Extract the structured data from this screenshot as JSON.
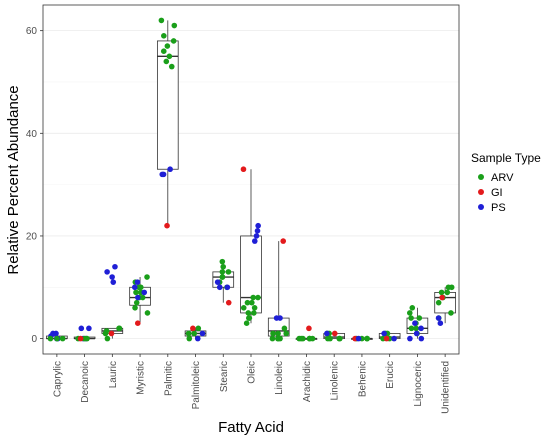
{
  "chart_data": {
    "type": "box",
    "xlabel": "Fatty Acid",
    "ylabel": "Relative Percent Abundance",
    "ylim": [
      -3,
      65
    ],
    "yticks": [
      0,
      20,
      40,
      60
    ],
    "grid": true,
    "legend_position": "right",
    "categories": [
      "Caprylic",
      "Decanoic",
      "Lauric",
      "Myristic",
      "Palmitic",
      "Palmitoleic",
      "Stearic",
      "Oleic",
      "Linoleic",
      "Arachidic",
      "Linolenic",
      "Behenic",
      "Erucic",
      "Lignoceric",
      "Unidentified"
    ],
    "legend": {
      "title": "Sample Type",
      "entries": [
        {
          "name": "ARV",
          "color": "#1a9f1a"
        },
        {
          "name": "GI",
          "color": "#e31a1c"
        },
        {
          "name": "PS",
          "color": "#1f1fd6"
        }
      ]
    },
    "boxes": [
      {
        "category": "Caprylic",
        "q1": 0,
        "median": 0,
        "q3": 0.5,
        "whisker_low": 0,
        "whisker_high": 1
      },
      {
        "category": "Decanoic",
        "q1": 0,
        "median": 0,
        "q3": 0.3,
        "whisker_low": 0,
        "whisker_high": 0.5
      },
      {
        "category": "Lauric",
        "q1": 1,
        "median": 1.5,
        "q3": 2,
        "whisker_low": 0,
        "whisker_high": 2
      },
      {
        "category": "Myristic",
        "q1": 6.5,
        "median": 8,
        "q3": 10,
        "whisker_low": 3,
        "whisker_high": 12
      },
      {
        "category": "Palmitic",
        "q1": 33,
        "median": 55,
        "q3": 58,
        "whisker_low": 22,
        "whisker_high": 62
      },
      {
        "category": "Palmitoleic",
        "q1": 0.5,
        "median": 1,
        "q3": 1.5,
        "whisker_low": 0,
        "whisker_high": 2
      },
      {
        "category": "Stearic",
        "q1": 10,
        "median": 12,
        "q3": 13,
        "whisker_low": 7,
        "whisker_high": 15
      },
      {
        "category": "Oleic",
        "q1": 5,
        "median": 8,
        "q3": 20,
        "whisker_low": 3,
        "whisker_high": 33
      },
      {
        "category": "Linoleic",
        "q1": 0.5,
        "median": 1.5,
        "q3": 4,
        "whisker_low": 0,
        "whisker_high": 19
      },
      {
        "category": "Arachidic",
        "q1": 0,
        "median": 0,
        "q3": 0,
        "whisker_low": 0,
        "whisker_high": 0
      },
      {
        "category": "Linolenic",
        "q1": 0,
        "median": 0.3,
        "q3": 1,
        "whisker_low": 0,
        "whisker_high": 1
      },
      {
        "category": "Behenic",
        "q1": 0,
        "median": 0,
        "q3": 0,
        "whisker_low": 0,
        "whisker_high": 0
      },
      {
        "category": "Erucic",
        "q1": 0,
        "median": 0.3,
        "q3": 1,
        "whisker_low": 0,
        "whisker_high": 1
      },
      {
        "category": "Lignoceric",
        "q1": 1,
        "median": 2,
        "q3": 4,
        "whisker_low": 0,
        "whisker_high": 6
      },
      {
        "category": "Unidentified",
        "q1": 5,
        "median": 8,
        "q3": 9,
        "whisker_low": 3,
        "whisker_high": 10
      }
    ],
    "points": [
      {
        "category": "Caprylic",
        "type": "PS",
        "values": [
          0,
          0,
          0.5,
          1,
          1
        ]
      },
      {
        "category": "Caprylic",
        "type": "ARV",
        "values": [
          0,
          0,
          0
        ]
      },
      {
        "category": "Decanoic",
        "type": "PS",
        "values": [
          0,
          0,
          2,
          2
        ]
      },
      {
        "category": "Decanoic",
        "type": "ARV",
        "values": [
          0,
          0,
          0
        ]
      },
      {
        "category": "Decanoic",
        "type": "GI",
        "values": [
          0
        ]
      },
      {
        "category": "Lauric",
        "type": "PS",
        "values": [
          14,
          13,
          11,
          12
        ]
      },
      {
        "category": "Lauric",
        "type": "ARV",
        "values": [
          0,
          1,
          2,
          2,
          1.5
        ]
      },
      {
        "category": "Lauric",
        "type": "GI",
        "values": [
          1
        ]
      },
      {
        "category": "Myristic",
        "type": "ARV",
        "values": [
          12,
          11,
          10,
          9,
          8,
          7,
          6,
          5,
          8,
          9,
          10
        ]
      },
      {
        "category": "Myristic",
        "type": "PS",
        "values": [
          11,
          10,
          9,
          8
        ]
      },
      {
        "category": "Myristic",
        "type": "GI",
        "values": [
          3
        ]
      },
      {
        "category": "Palmitic",
        "type": "ARV",
        "values": [
          62,
          61,
          59,
          58,
          57,
          56,
          55,
          54,
          53
        ]
      },
      {
        "category": "Palmitic",
        "type": "PS",
        "values": [
          33,
          32,
          32
        ]
      },
      {
        "category": "Palmitic",
        "type": "GI",
        "values": [
          22
        ]
      },
      {
        "category": "Palmitoleic",
        "type": "ARV",
        "values": [
          0,
          1,
          1,
          2
        ]
      },
      {
        "category": "Palmitoleic",
        "type": "PS",
        "values": [
          0,
          1
        ]
      },
      {
        "category": "Palmitoleic",
        "type": "GI",
        "values": [
          2
        ]
      },
      {
        "category": "Stearic",
        "type": "ARV",
        "values": [
          15,
          14,
          13,
          13,
          12,
          12,
          11,
          11,
          10
        ]
      },
      {
        "category": "Stearic",
        "type": "PS",
        "values": [
          11,
          10,
          10
        ]
      },
      {
        "category": "Stearic",
        "type": "GI",
        "values": [
          7
        ]
      },
      {
        "category": "Oleic",
        "type": "PS",
        "values": [
          22,
          21,
          20,
          19
        ]
      },
      {
        "category": "Oleic",
        "type": "ARV",
        "values": [
          8,
          7,
          6,
          5,
          4,
          3,
          4,
          5,
          6,
          7,
          8
        ]
      },
      {
        "category": "Oleic",
        "type": "GI",
        "values": [
          33
        ]
      },
      {
        "category": "Linoleic",
        "type": "PS",
        "values": [
          4,
          4
        ]
      },
      {
        "category": "Linoleic",
        "type": "ARV",
        "values": [
          0,
          0,
          1,
          1,
          2,
          0,
          0,
          1
        ]
      },
      {
        "category": "Linoleic",
        "type": "GI",
        "values": [
          19
        ]
      },
      {
        "category": "Arachidic",
        "type": "ARV",
        "values": [
          0,
          0,
          0,
          0,
          0,
          0
        ]
      },
      {
        "category": "Arachidic",
        "type": "GI",
        "values": [
          2
        ]
      },
      {
        "category": "Linolenic",
        "type": "ARV",
        "values": [
          0,
          0,
          0,
          1,
          1,
          0
        ]
      },
      {
        "category": "Linolenic",
        "type": "PS",
        "values": [
          1
        ]
      },
      {
        "category": "Linolenic",
        "type": "GI",
        "values": [
          1
        ]
      },
      {
        "category": "Behenic",
        "type": "ARV",
        "values": [
          0,
          0,
          0,
          0
        ]
      },
      {
        "category": "Behenic",
        "type": "GI",
        "values": [
          0
        ]
      },
      {
        "category": "Behenic",
        "type": "PS",
        "values": [
          0
        ]
      },
      {
        "category": "Erucic",
        "type": "ARV",
        "values": [
          0,
          0,
          1,
          1
        ]
      },
      {
        "category": "Erucic",
        "type": "GI",
        "values": [
          0
        ]
      },
      {
        "category": "Erucic",
        "type": "PS",
        "values": [
          0,
          1
        ]
      },
      {
        "category": "Lignoceric",
        "type": "ARV",
        "values": [
          6,
          5,
          4,
          4,
          3,
          2,
          1,
          2
        ]
      },
      {
        "category": "Lignoceric",
        "type": "PS",
        "values": [
          0,
          0,
          1,
          2,
          3
        ]
      },
      {
        "category": "Unidentified",
        "type": "ARV",
        "values": [
          10,
          10,
          9,
          9,
          8,
          7,
          5,
          4
        ]
      },
      {
        "category": "Unidentified",
        "type": "PS",
        "values": [
          4,
          3
        ]
      },
      {
        "category": "Unidentified",
        "type": "GI",
        "values": [
          8
        ]
      }
    ]
  }
}
